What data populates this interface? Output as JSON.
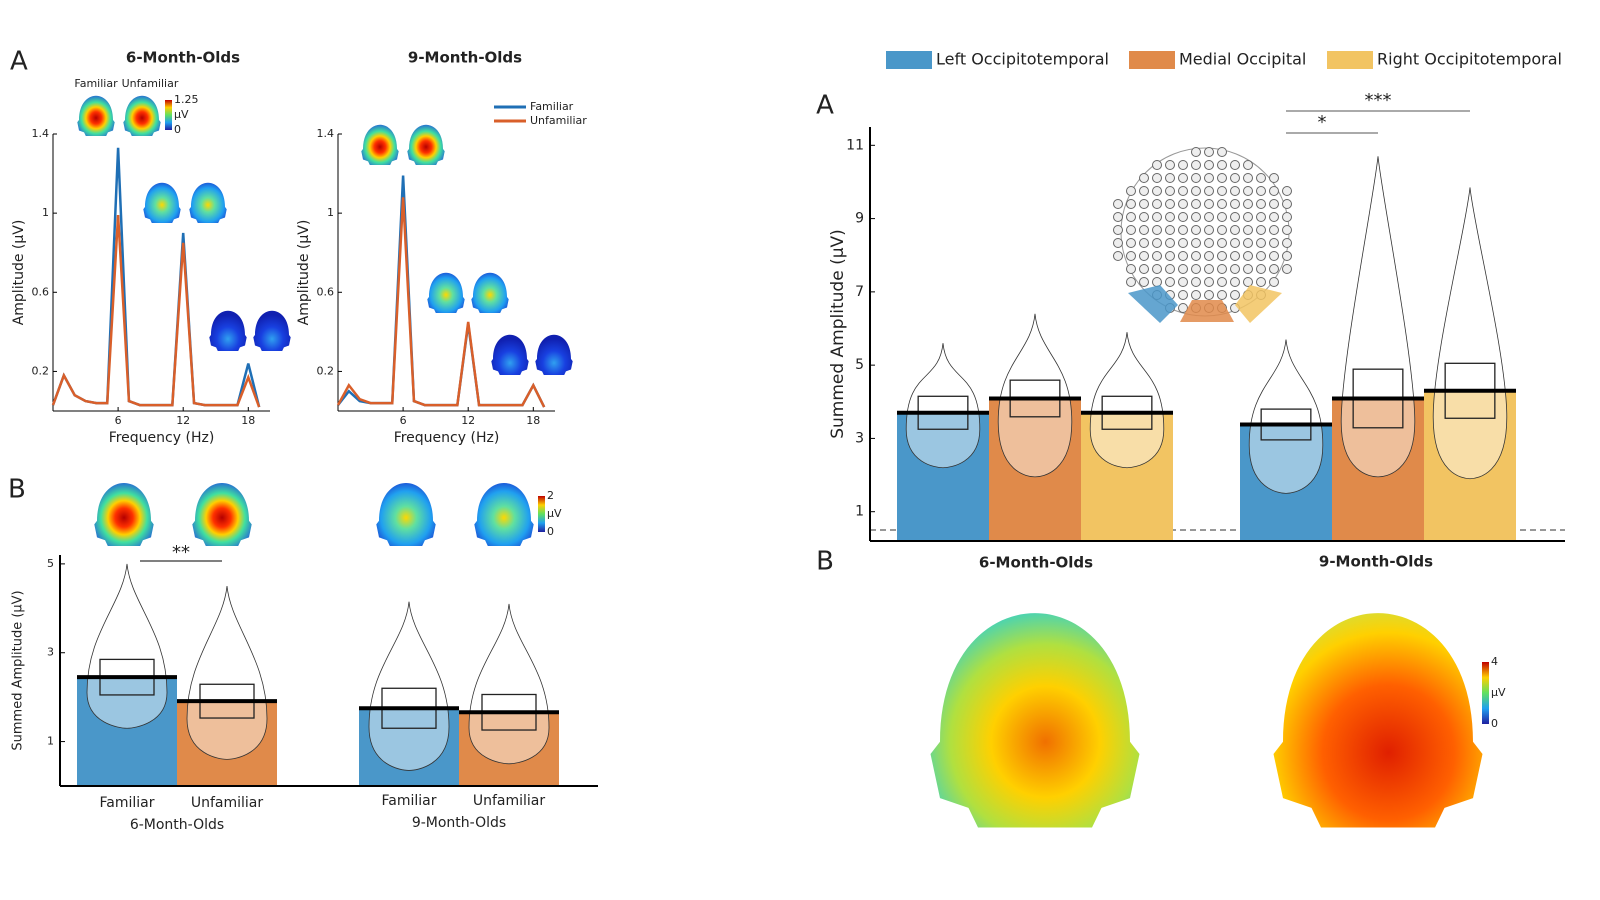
{
  "figure": {
    "panel_labels": [
      "A",
      "B",
      "A",
      "B"
    ],
    "head_labels": [
      "Familiar",
      "Unfamiliar"
    ],
    "topomap_titles": [
      "6-Month-Olds",
      "9-Month-Olds"
    ],
    "colorbars": [
      [
        "1.25",
        "µV",
        "0"
      ],
      [
        "2",
        "µV",
        "0"
      ],
      [
        "4",
        "µV",
        "0"
      ]
    ]
  },
  "chart_data": [
    {
      "type": "line",
      "title": "6-Month-Olds",
      "x_label": "Frequency (Hz)",
      "y_label": "Amplitude (µV)",
      "x": [
        0,
        1,
        2,
        3,
        4,
        5,
        6,
        7,
        8,
        9,
        10,
        11,
        12,
        13,
        14,
        15,
        16,
        17,
        18,
        19
      ],
      "series": [
        {
          "name": "Familiar",
          "color": "#1f6fb5",
          "values": [
            0.03,
            0.18,
            0.08,
            0.05,
            0.04,
            0.04,
            1.33,
            0.05,
            0.03,
            0.03,
            0.03,
            0.03,
            0.9,
            0.04,
            0.03,
            0.03,
            0.03,
            0.03,
            0.24,
            0.02
          ]
        },
        {
          "name": "Unfamiliar",
          "color": "#d95f2a",
          "values": [
            0.03,
            0.18,
            0.08,
            0.05,
            0.04,
            0.04,
            0.99,
            0.05,
            0.03,
            0.03,
            0.03,
            0.03,
            0.85,
            0.04,
            0.03,
            0.03,
            0.03,
            0.03,
            0.17,
            0.02
          ]
        }
      ],
      "xlim": [
        0,
        20
      ],
      "ylim": [
        0,
        1.4
      ],
      "xticks": [
        6,
        12,
        18
      ],
      "yticks": [
        0.2,
        0.6,
        1,
        1.4
      ]
    },
    {
      "type": "line",
      "title": "9-Month-Olds",
      "x_label": "Frequency (Hz)",
      "y_label": "Amplitude (µV)",
      "x": [
        0,
        1,
        2,
        3,
        4,
        5,
        6,
        7,
        8,
        9,
        10,
        11,
        12,
        13,
        14,
        15,
        16,
        17,
        18,
        19
      ],
      "series": [
        {
          "name": "Familiar",
          "color": "#1f6fb5",
          "values": [
            0.03,
            0.1,
            0.05,
            0.04,
            0.04,
            0.04,
            1.19,
            0.05,
            0.03,
            0.03,
            0.03,
            0.03,
            0.44,
            0.03,
            0.03,
            0.03,
            0.03,
            0.03,
            0.13,
            0.02
          ]
        },
        {
          "name": "Unfamiliar",
          "color": "#d95f2a",
          "values": [
            0.03,
            0.13,
            0.06,
            0.04,
            0.04,
            0.04,
            1.08,
            0.05,
            0.03,
            0.03,
            0.03,
            0.03,
            0.45,
            0.03,
            0.03,
            0.03,
            0.03,
            0.03,
            0.13,
            0.02
          ]
        }
      ],
      "xlim": [
        0,
        20
      ],
      "ylim": [
        0,
        1.4
      ],
      "xticks": [
        6,
        12,
        18
      ],
      "yticks": [
        0.2,
        0.6,
        1,
        1.4
      ],
      "legend": "upper right"
    },
    {
      "type": "bar",
      "y_label": "Summed Amplitude (µV)",
      "groups": [
        "6-Month-Olds",
        "9-Month-Olds"
      ],
      "series": [
        {
          "name": "Familiar",
          "color": "#4a97c9",
          "values": [
            2.45,
            1.75
          ],
          "errors": [
            0.4,
            0.45
          ],
          "ranges": [
            [
              1.3,
              5.0
            ],
            [
              0.35,
              4.15
            ]
          ]
        },
        {
          "name": "Unfamiliar",
          "color": "#e08a4a",
          "values": [
            1.91,
            1.66
          ],
          "errors": [
            0.38,
            0.4
          ],
          "ranges": [
            [
              0.6,
              4.5
            ],
            [
              0.5,
              4.1
            ]
          ]
        }
      ],
      "ylim": [
        0,
        5.2
      ],
      "yticks": [
        1,
        3,
        5
      ],
      "annotations": [
        "**"
      ]
    },
    {
      "type": "bar",
      "y_label": "Summed Amplitude (µV)",
      "groups": [
        "6-Month-Olds",
        "9-Month-Olds"
      ],
      "series": [
        {
          "name": "Left Occipitotemporal",
          "color": "#4a97c9",
          "values": [
            3.7,
            3.38
          ],
          "errors": [
            0.45,
            0.42
          ],
          "ranges": [
            [
              2.2,
              5.6
            ],
            [
              1.5,
              5.7
            ]
          ]
        },
        {
          "name": "Medial Occipital",
          "color": "#e08a4a",
          "values": [
            4.09,
            4.09
          ],
          "errors": [
            0.5,
            0.8
          ],
          "ranges": [
            [
              1.95,
              6.4
            ],
            [
              1.95,
              10.7
            ]
          ]
        },
        {
          "name": "Right Occipitotemporal",
          "color": "#f2c462",
          "values": [
            3.7,
            4.3
          ],
          "errors": [
            0.45,
            0.75
          ],
          "ranges": [
            [
              2.2,
              5.9
            ],
            [
              1.9,
              9.85
            ]
          ]
        }
      ],
      "ylim": [
        0.2,
        11.5
      ],
      "yticks": [
        1,
        3,
        5,
        7,
        9,
        11
      ],
      "reference_line": 0.5,
      "annotations": [
        "*",
        "***"
      ],
      "legend": "top"
    }
  ]
}
